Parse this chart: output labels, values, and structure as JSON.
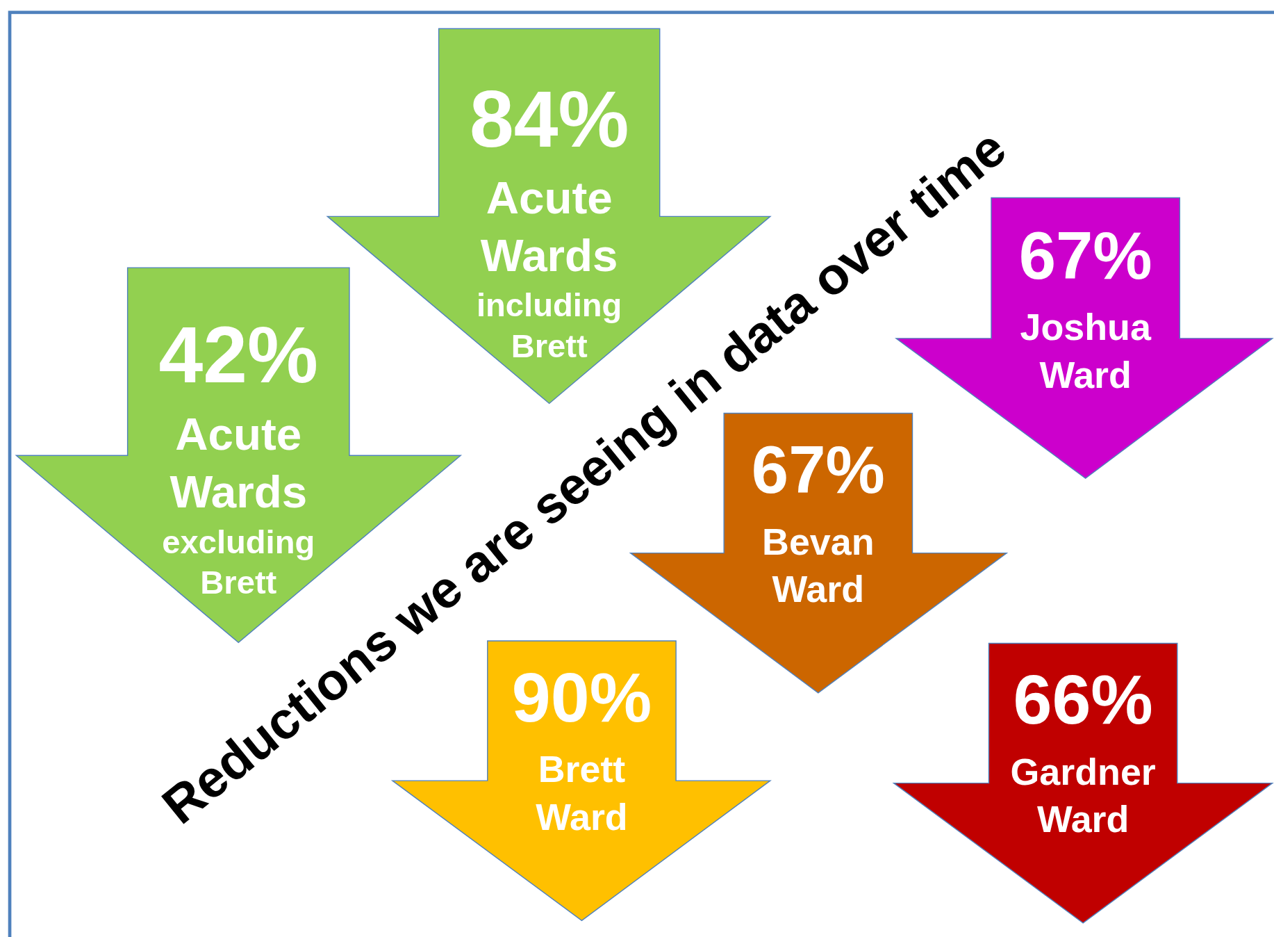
{
  "chart_data": {
    "type": "other",
    "title": "Reductions we are seeing in data over time",
    "categories": [
      "Acute Wards including Brett",
      "Acute Wards excluding Brett",
      "Joshua Ward",
      "Bevan Ward",
      "Brett Ward",
      "Gardner Ward"
    ],
    "values": [
      84,
      42,
      67,
      67,
      90,
      66
    ],
    "value_labels": [
      "84%",
      "42%",
      "67%",
      "67%",
      "90%",
      "66%"
    ],
    "colors": [
      "#92d050",
      "#92d050",
      "#cc00cc",
      "#cc6600",
      "#ffc000",
      "#c00000"
    ]
  }
}
